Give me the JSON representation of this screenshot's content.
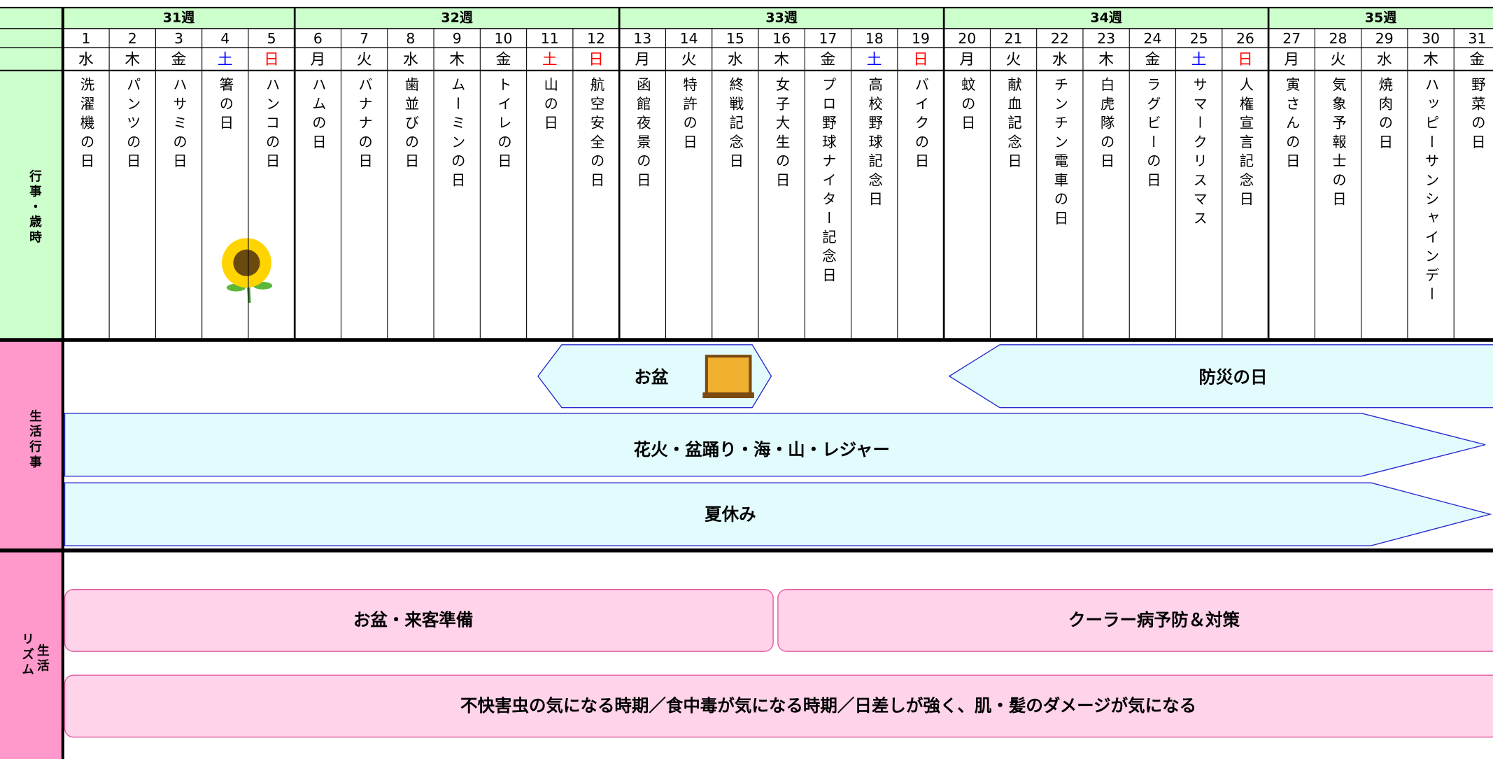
{
  "labels": {
    "events": "行事・歳時",
    "life_events": "生活行事",
    "rhythm": [
      "生活",
      "リズム"
    ]
  },
  "weeks": [
    {
      "label": "31週",
      "days": [
        {
          "num": 1,
          "weekday": "水",
          "event": "洗濯機の日"
        },
        {
          "num": 2,
          "weekday": "木",
          "event": "パンツの日"
        },
        {
          "num": 3,
          "weekday": "金",
          "event": "ハサミの日"
        },
        {
          "num": 4,
          "weekday": "土",
          "color": "#0000ff",
          "event": "箸の日"
        },
        {
          "num": 5,
          "weekday": "日",
          "color": "#ff0000",
          "event": "ハンコの日"
        }
      ]
    },
    {
      "label": "32週",
      "days": [
        {
          "num": 6,
          "weekday": "月",
          "event": "ハムの日"
        },
        {
          "num": 7,
          "weekday": "火",
          "event": "バナナの日"
        },
        {
          "num": 8,
          "weekday": "水",
          "event": "歯並びの日"
        },
        {
          "num": 9,
          "weekday": "木",
          "event": "ムーミンの日"
        },
        {
          "num": 10,
          "weekday": "金",
          "event": "トイレの日"
        },
        {
          "num": 11,
          "weekday": "土",
          "color": "#ff0000",
          "event": "山の日"
        },
        {
          "num": 12,
          "weekday": "日",
          "color": "#ff0000",
          "event": "航空安全の日"
        }
      ]
    },
    {
      "label": "33週",
      "days": [
        {
          "num": 13,
          "weekday": "月",
          "event": "函館夜景の日"
        },
        {
          "num": 14,
          "weekday": "火",
          "event": "特許の日"
        },
        {
          "num": 15,
          "weekday": "水",
          "event": "終戦記念日"
        },
        {
          "num": 16,
          "weekday": "木",
          "event": "女子大生の日"
        },
        {
          "num": 17,
          "weekday": "金",
          "event": "プロ野球ナイター記念日"
        },
        {
          "num": 18,
          "weekday": "土",
          "color": "#0000ff",
          "event": "高校野球記念日"
        },
        {
          "num": 19,
          "weekday": "日",
          "color": "#ff0000",
          "event": "バイクの日"
        }
      ]
    },
    {
      "label": "34週",
      "days": [
        {
          "num": 20,
          "weekday": "月",
          "event": "蚊の日"
        },
        {
          "num": 21,
          "weekday": "火",
          "event": "献血記念日"
        },
        {
          "num": 22,
          "weekday": "水",
          "event": "チンチン電車の日"
        },
        {
          "num": 23,
          "weekday": "木",
          "event": "白虎隊の日"
        },
        {
          "num": 24,
          "weekday": "金",
          "event": "ラグビーの日"
        },
        {
          "num": 25,
          "weekday": "土",
          "color": "#0000ff",
          "event": "サマークリスマス"
        },
        {
          "num": 26,
          "weekday": "日",
          "color": "#ff0000",
          "event": "人権宣言記念日"
        }
      ]
    },
    {
      "label": "35週",
      "days": [
        {
          "num": 27,
          "weekday": "月",
          "event": "寅さんの日"
        },
        {
          "num": 28,
          "weekday": "火",
          "event": "気象予報士の日"
        },
        {
          "num": 29,
          "weekday": "水",
          "event": "焼肉の日"
        },
        {
          "num": 30,
          "weekday": "木",
          "event": "ハッピーサンシャインデー"
        },
        {
          "num": 31,
          "weekday": "金",
          "event": "野菜の日"
        }
      ]
    }
  ],
  "life_events": [
    "お盆",
    "防災の日",
    "花火・盆踊り・海・山・レジャー",
    "夏休み"
  ],
  "rhythm": [
    "お盆・来客準備",
    "クーラー病予防＆対策",
    "不快害虫の気になる時期／食中毒が気になる時期／日差しが強く、肌・髪のダメージが気になる"
  ]
}
